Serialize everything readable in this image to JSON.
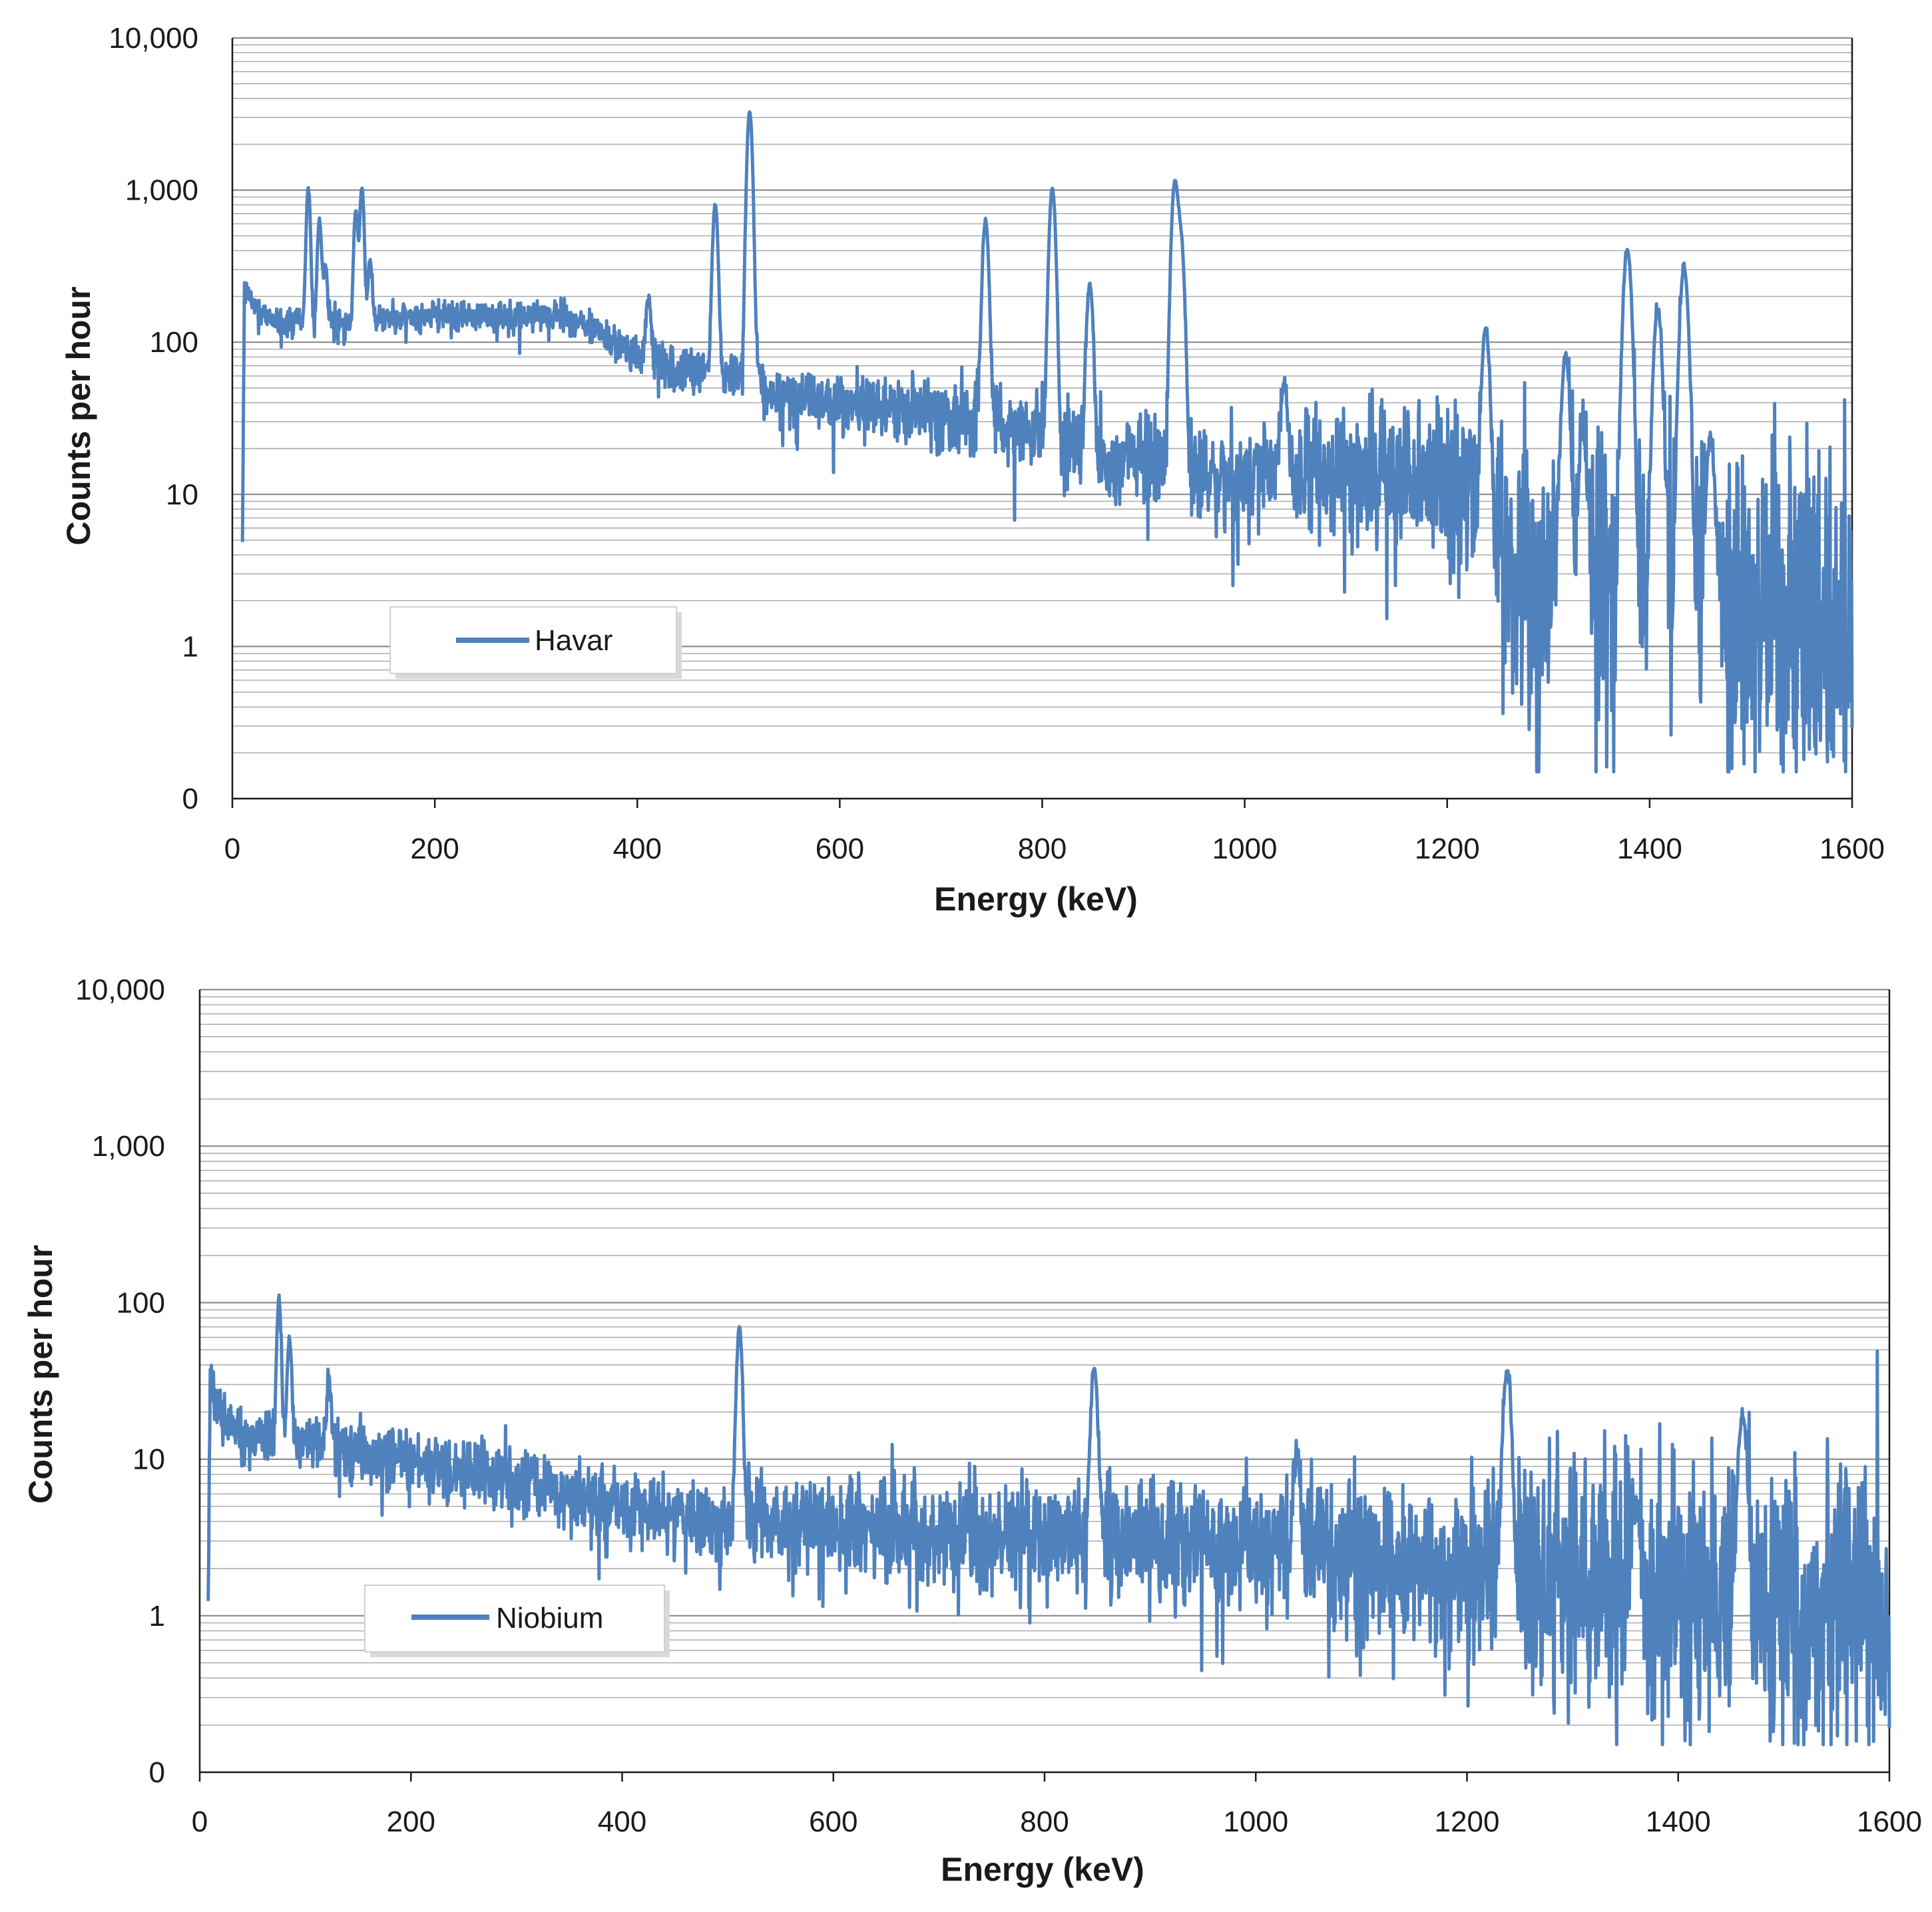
{
  "colors": {
    "series": "#4f81bd",
    "grid": "#a6a6a6",
    "axis": "#1a1a1a"
  },
  "chart_data": [
    {
      "type": "line",
      "xlabel": "Energy (keV)",
      "ylabel": "Counts per hour",
      "xlim": [
        0,
        1600
      ],
      "xticks": [
        "0",
        "200",
        "400",
        "600",
        "800",
        "1000",
        "1200",
        "1400",
        "1600"
      ],
      "yscale": "log",
      "ylim_decades": [
        0,
        5
      ],
      "yticks": [
        "0",
        "1",
        "10",
        "100",
        "1,000",
        "10,000"
      ],
      "grid": "horizontal minor log",
      "legend": {
        "label": "Havar",
        "position": "lower-left"
      },
      "series": [
        {
          "name": "Havar",
          "baseline": [
            [
              10,
              6
            ],
            [
              12,
              220
            ],
            [
              20,
              180
            ],
            [
              40,
              140
            ],
            [
              60,
              130
            ],
            [
              80,
              140
            ],
            [
              110,
              140
            ],
            [
              150,
              145
            ],
            [
              200,
              150
            ],
            [
              300,
              150
            ],
            [
              330,
              150
            ],
            [
              350,
              130
            ],
            [
              380,
              95
            ],
            [
              400,
              80
            ],
            [
              450,
              65
            ],
            [
              500,
              60
            ],
            [
              515,
              100
            ],
            [
              525,
              45
            ],
            [
              600,
              40
            ],
            [
              700,
              35
            ],
            [
              760,
              30
            ],
            [
              800,
              24
            ],
            [
              850,
              18
            ],
            [
              920,
              16
            ],
            [
              935,
              25
            ],
            [
              945,
              14
            ],
            [
              1000,
              13
            ],
            [
              1100,
              14
            ],
            [
              1180,
              14
            ],
            [
              1220,
              10
            ],
            [
              1250,
              5
            ],
            [
              1290,
              3
            ],
            [
              1350,
              2.5
            ],
            [
              1450,
              2
            ],
            [
              1600,
              2
            ]
          ],
          "noise_decades": [
            [
              10,
              0.05
            ],
            [
              340,
              0.05
            ],
            [
              500,
              0.08
            ],
            [
              760,
              0.12
            ],
            [
              940,
              0.16
            ],
            [
              1180,
              0.22
            ],
            [
              1250,
              0.4
            ],
            [
              1400,
              0.55
            ],
            [
              1600,
              0.6
            ]
          ],
          "peaks": [
            {
              "energy": 75,
              "value": 900
            },
            {
              "energy": 86,
              "value": 500
            },
            {
              "energy": 92,
              "value": 200
            },
            {
              "energy": 122,
              "value": 600
            },
            {
              "energy": 128,
              "value": 900
            },
            {
              "energy": 136,
              "value": 200
            },
            {
              "energy": 411,
              "value": 120
            },
            {
              "energy": 477,
              "value": 750
            },
            {
              "energy": 511,
              "value": 3200
            },
            {
              "energy": 744,
              "value": 600
            },
            {
              "energy": 810,
              "value": 1000
            },
            {
              "energy": 847,
              "value": 220
            },
            {
              "energy": 931,
              "value": 1100
            },
            {
              "energy": 937,
              "value": 450
            },
            {
              "energy": 1039,
              "value": 40
            },
            {
              "energy": 1238,
              "value": 120
            },
            {
              "energy": 1317,
              "value": 80
            },
            {
              "energy": 1334,
              "value": 23
            },
            {
              "energy": 1378,
              "value": 400
            },
            {
              "energy": 1408,
              "value": 160
            },
            {
              "energy": 1434,
              "value": 300
            },
            {
              "energy": 1460,
              "value": 22
            }
          ]
        }
      ]
    },
    {
      "type": "line",
      "xlabel": "Energy (keV)",
      "ylabel": "Counts per hour",
      "xlim": [
        0,
        1600
      ],
      "xticks": [
        "0",
        "200",
        "400",
        "600",
        "800",
        "1000",
        "1200",
        "1400",
        "1600"
      ],
      "yscale": "log",
      "ylim_decades": [
        0,
        5
      ],
      "yticks": [
        "0",
        "1",
        "10",
        "100",
        "1,000",
        "10,000"
      ],
      "grid": "horizontal minor log",
      "legend": {
        "label": "Niobium",
        "position": "lower-left"
      },
      "series": [
        {
          "name": "Niobium",
          "baseline": [
            [
              8,
              1.3
            ],
            [
              10,
              30
            ],
            [
              20,
              20
            ],
            [
              40,
              14
            ],
            [
              80,
              14
            ],
            [
              150,
              11
            ],
            [
              300,
              7
            ],
            [
              400,
              5
            ],
            [
              500,
              4
            ],
            [
              600,
              3.8
            ],
            [
              800,
              3.2
            ],
            [
              1000,
              2.8
            ],
            [
              1200,
              2.0
            ],
            [
              1400,
              1.3
            ],
            [
              1600,
              1.1
            ]
          ],
          "noise_decades": [
            [
              8,
              0.08
            ],
            [
              400,
              0.12
            ],
            [
              800,
              0.17
            ],
            [
              1200,
              0.25
            ],
            [
              1300,
              0.4
            ],
            [
              1600,
              0.45
            ]
          ],
          "peaks": [
            {
              "energy": 75,
              "value": 90
            },
            {
              "energy": 85,
              "value": 45
            },
            {
              "energy": 122,
              "value": 20
            },
            {
              "energy": 511,
              "value": 65
            },
            {
              "energy": 847,
              "value": 35
            },
            {
              "energy": 1039,
              "value": 8
            },
            {
              "energy": 1238,
              "value": 35
            },
            {
              "energy": 1360,
              "value": 4
            },
            {
              "energy": 1461,
              "value": 18
            }
          ]
        }
      ]
    }
  ]
}
